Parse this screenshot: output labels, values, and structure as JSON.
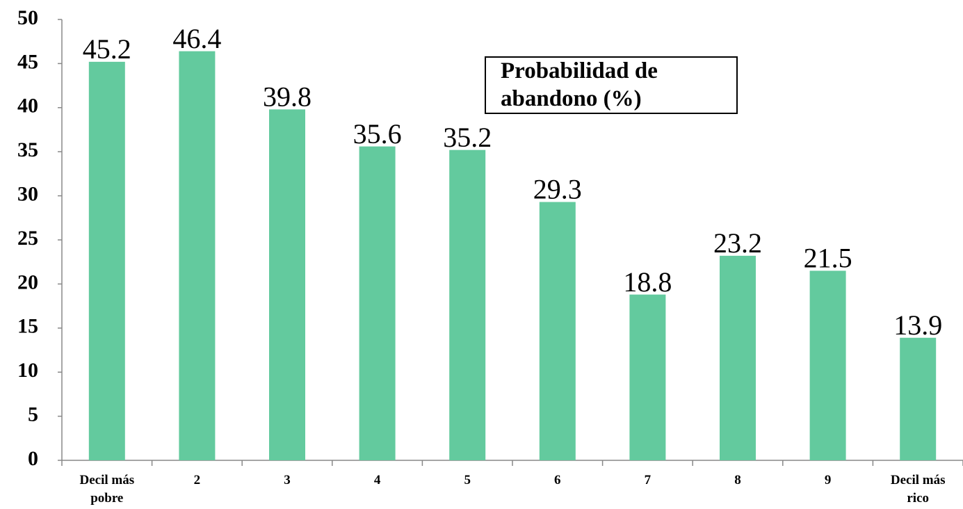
{
  "chart_data": {
    "type": "bar",
    "title": "Probabilidad de abandono (%)",
    "categories": [
      "Decil más pobre",
      "2",
      "3",
      "4",
      "5",
      "6",
      "7",
      "8",
      "9",
      "Decil más rico"
    ],
    "values": [
      45.2,
      46.4,
      39.8,
      35.6,
      35.2,
      29.3,
      18.8,
      23.2,
      21.5,
      13.9
    ],
    "color": "#63ca9e",
    "ylim": [
      0,
      50
    ],
    "yticks": [
      0,
      5,
      10,
      15,
      20,
      25,
      30,
      35,
      40,
      45,
      50
    ],
    "grid": false
  }
}
